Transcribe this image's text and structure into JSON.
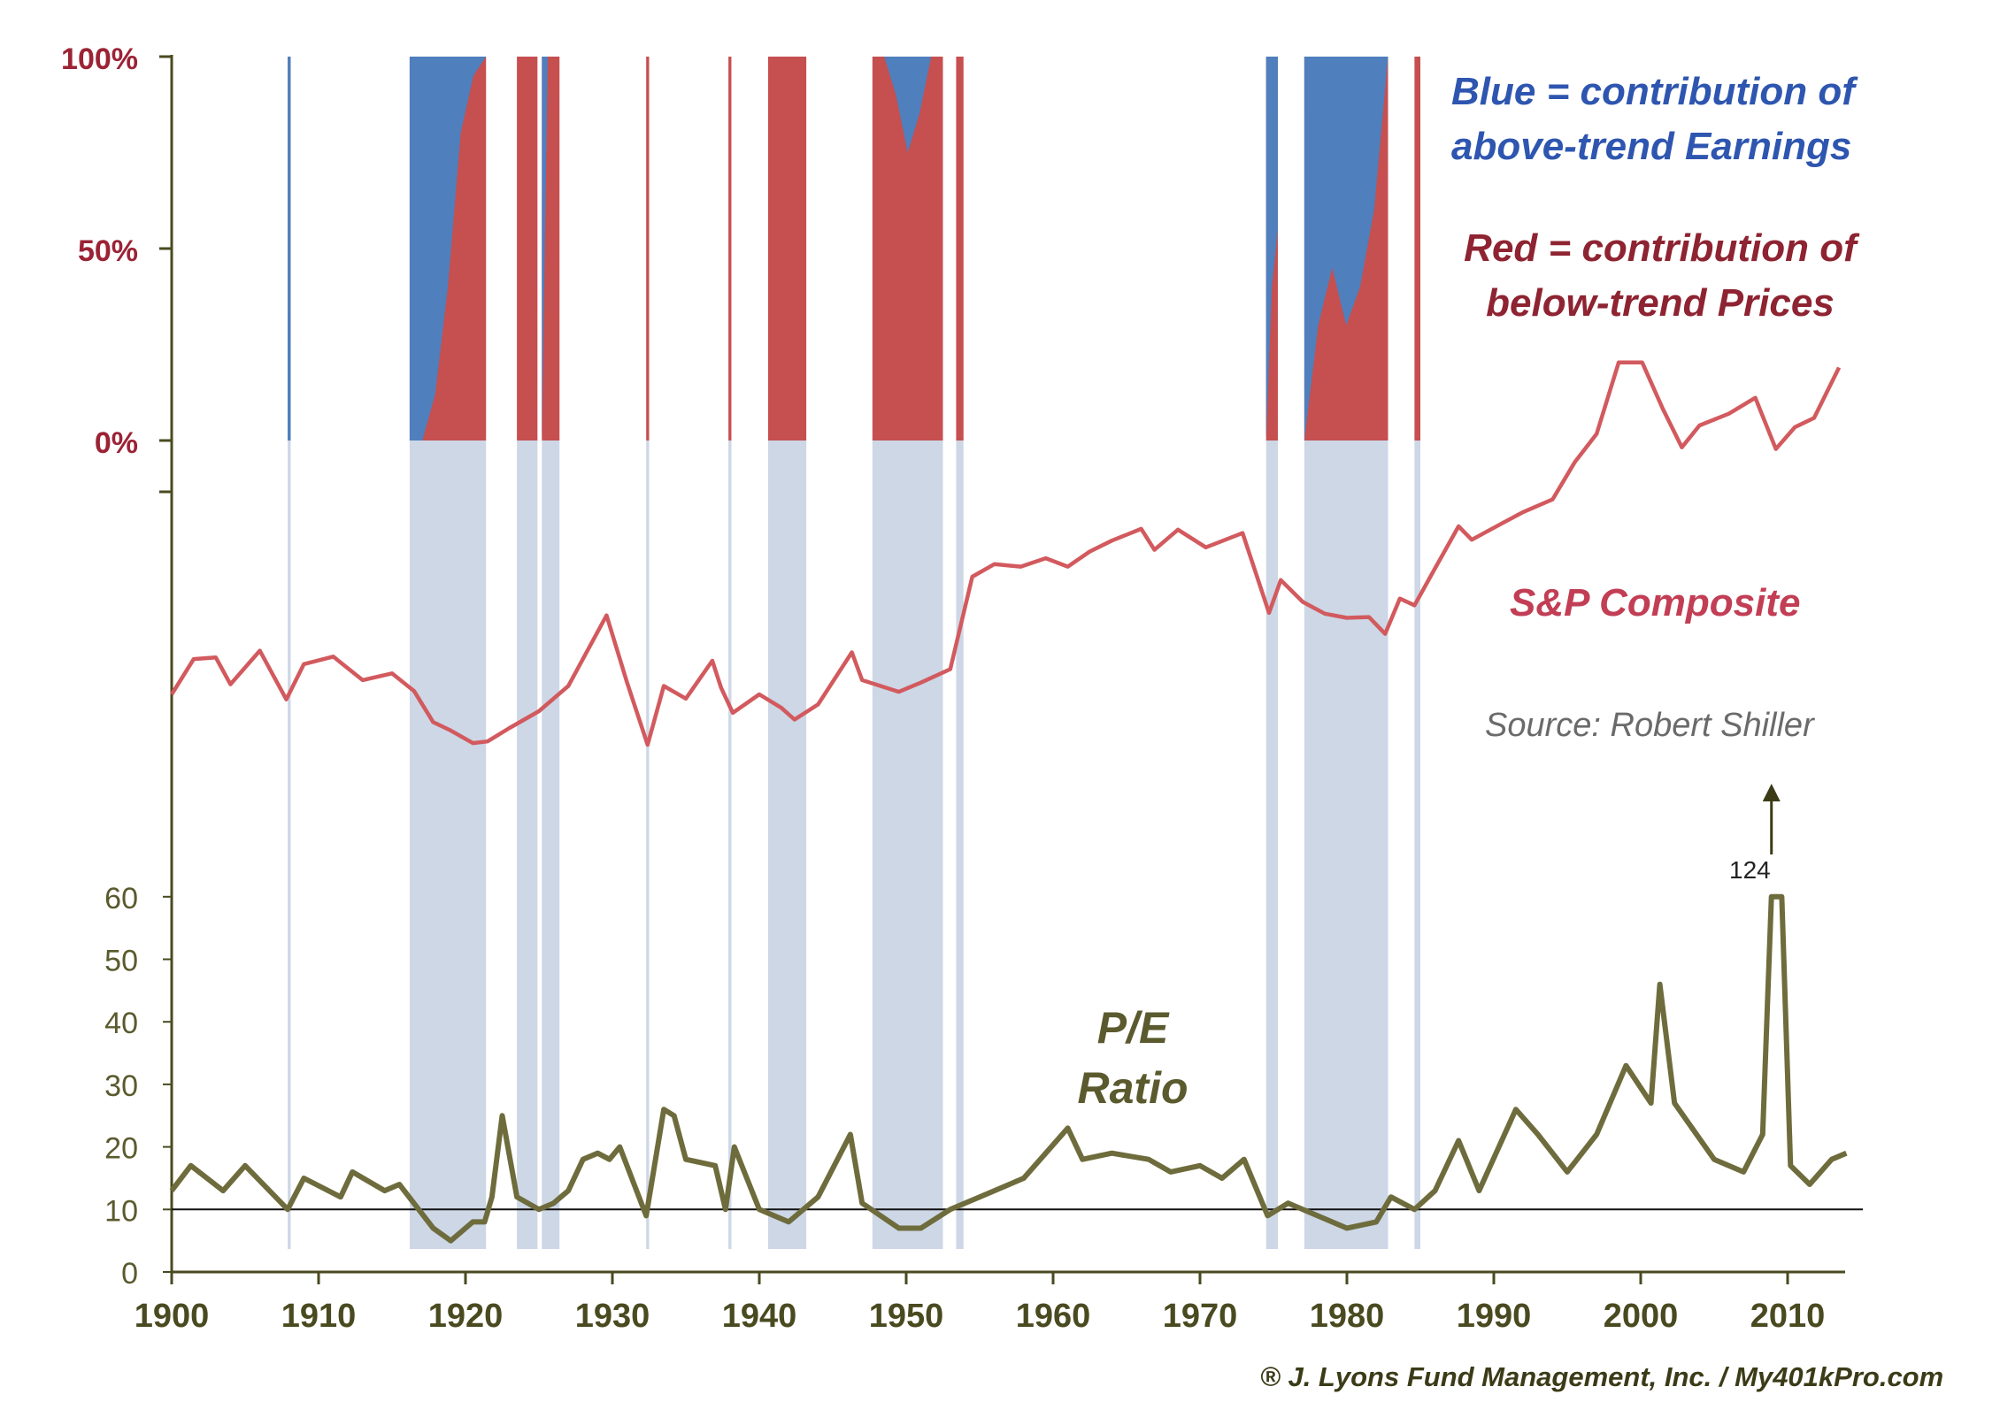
{
  "colors": {
    "blue_fill": "#4f7fbd",
    "red_fill": "#c64f50",
    "shade": "#cdd7e6",
    "sp_line": "#d25a5e",
    "pe_line": "#6e6c3c",
    "pct_ticks": "#9b2335",
    "pe_ticks": "#5a5a2e",
    "year_ticks": "#4a4a20",
    "axis": "#4a4a20"
  },
  "annotations": {
    "blue_line1": "Blue = contribution of",
    "blue_line2": "above-trend Earnings",
    "red_line1": "Red = contribution of",
    "red_line2": "below-trend Prices",
    "sp_label": "S&P Composite",
    "source": "Source: Robert Shiller",
    "pe_line1": "P/E",
    "pe_line2": "Ratio",
    "off_scale_value": "124",
    "credit": "® J. Lyons Fund Management, Inc. / My401kPro.com"
  },
  "chart_data": [
    {
      "type": "area",
      "panel": "contribution",
      "y_tick_labels": [
        "100%",
        "50%",
        "0%"
      ],
      "ylim": [
        0,
        100
      ],
      "legend": "Blue = contribution of above-trend Earnings; Red = contribution of below-trend Prices",
      "periods": [
        {
          "start": 1907.9,
          "end": 1908.1,
          "blue_share": [
            100,
            100
          ]
        },
        {
          "start": 1916.2,
          "end": 1921.4,
          "blue_share": [
            100,
            100,
            88,
            60,
            20,
            5,
            0
          ]
        },
        {
          "start": 1923.5,
          "end": 1924.9,
          "blue_share": [
            0,
            0
          ]
        },
        {
          "start": 1925.2,
          "end": 1926.4,
          "blue_share": [
            100,
            0,
            0,
            0
          ]
        },
        {
          "start": 1932.3,
          "end": 1932.5,
          "blue_share": [
            0,
            0
          ]
        },
        {
          "start": 1937.9,
          "end": 1938.1,
          "blue_share": [
            0,
            0
          ]
        },
        {
          "start": 1940.6,
          "end": 1943.2,
          "blue_share": [
            0,
            0,
            0
          ]
        },
        {
          "start": 1947.7,
          "end": 1952.5,
          "blue_share": [
            0,
            0,
            10,
            25,
            15,
            0,
            0
          ]
        },
        {
          "start": 1953.4,
          "end": 1953.9,
          "blue_share": [
            0,
            0
          ]
        },
        {
          "start": 1974.5,
          "end": 1975.3,
          "blue_share": [
            100,
            60,
            45
          ]
        },
        {
          "start": 1977.1,
          "end": 1982.8,
          "blue_share": [
            100,
            70,
            55,
            70,
            60,
            40,
            0
          ]
        },
        {
          "start": 1984.6,
          "end": 1985.0,
          "blue_share": [
            0,
            0
          ]
        }
      ]
    },
    {
      "type": "line",
      "panel": "price",
      "series": [
        {
          "name": "S&P Composite",
          "x": [
            1900,
            1901.5,
            1903,
            1904,
            1906,
            1907.8,
            1909,
            1911,
            1913,
            1915,
            1916.5,
            1917.8,
            1919,
            1920.5,
            1921.5,
            1923,
            1925,
            1927,
            1929.6,
            1931,
            1932.4,
            1933.5,
            1935,
            1936.8,
            1937.4,
            1938.2,
            1940,
            1941.5,
            1942.4,
            1944,
            1946.3,
            1947,
            1949.5,
            1951,
            1953,
            1954.5,
            1956,
            1957.8,
            1959.5,
            1961,
            1962.5,
            1964,
            1966,
            1966.9,
            1968.5,
            1970.4,
            1972.9,
            1974.7,
            1975.5,
            1977,
            1978.5,
            1980,
            1981.5,
            1982.6,
            1983.6,
            1984.6,
            1986,
            1987.6,
            1988.5,
            1990.5,
            1992,
            1994,
            1995.5,
            1997,
            1998.5,
            2000.1,
            2001.5,
            2002.8,
            2004,
            2006,
            2007.8,
            2009.2,
            2010.5,
            2011.8,
            2013.5
          ],
          "values": [
            100,
            142,
            144,
            112,
            152,
            94,
            136,
            145,
            117,
            125,
            104,
            67,
            57,
            42,
            44,
            60,
            80,
            110,
            194,
            114,
            40,
            110,
            95,
            140,
            108,
            78,
            100,
            84,
            70,
            88,
            150,
            117,
            103,
            114,
            130,
            240,
            255,
            252,
            262,
            252,
            270,
            283,
            297,
            272,
            296,
            275,
            292,
            197,
            236,
            210,
            196,
            191,
            192,
            172,
            214,
            206,
            250,
            300,
            284,
            303,
            317,
            332,
            376,
            410,
            495,
            495,
            440,
            394,
            420,
            434,
            453,
            392,
            418,
            429,
            489
          ]
        }
      ]
    },
    {
      "type": "line",
      "panel": "pe_ratio",
      "y_tick_labels": [
        "0",
        "10",
        "20",
        "30",
        "40",
        "50",
        "60"
      ],
      "ylim": [
        0,
        60
      ],
      "x_tick_labels": [
        "1900",
        "1910",
        "1920",
        "1930",
        "1940",
        "1950",
        "1960",
        "1970",
        "1980",
        "1990",
        "2000",
        "2010"
      ],
      "xlim": [
        1900,
        2014
      ],
      "reference_line": 10,
      "off_scale_peak": 124,
      "series": [
        {
          "name": "P/E Ratio",
          "x": [
            1900,
            1901.3,
            1903.5,
            1905,
            1907.9,
            1909,
            1911.5,
            1912.3,
            1914.5,
            1915.5,
            1917.8,
            1919,
            1920.5,
            1921.3,
            1921.8,
            1922.5,
            1923.5,
            1925,
            1926,
            1927,
            1928,
            1929,
            1929.8,
            1930.5,
            1932.3,
            1933.5,
            1934.2,
            1935,
            1937,
            1937.7,
            1938.3,
            1940,
            1942,
            1944,
            1946.2,
            1947,
            1949.5,
            1951,
            1953,
            1955,
            1958,
            1961,
            1962,
            1964,
            1966.5,
            1968,
            1970,
            1971.5,
            1973,
            1974.6,
            1976,
            1978,
            1980,
            1982,
            1983,
            1984.6,
            1986,
            1987.6,
            1989,
            1991.5,
            1993,
            1995,
            1997,
            1999,
            2000.7,
            2001.3,
            2002.3,
            2003.5,
            2005,
            2007,
            2008.3,
            2008.9,
            2009.6,
            2010.2,
            2011.5,
            2013,
            2014
          ],
          "values": [
            13,
            17,
            13,
            17,
            10,
            15,
            12,
            16,
            13,
            14,
            7,
            5,
            8,
            8,
            12,
            25,
            12,
            10,
            11,
            13,
            18,
            19,
            18,
            20,
            9,
            26,
            25,
            18,
            17,
            10,
            20,
            10,
            8,
            12,
            22,
            11,
            7,
            7,
            10,
            12,
            15,
            23,
            18,
            19,
            18,
            16,
            17,
            15,
            18,
            9,
            11,
            9,
            7,
            8,
            12,
            10,
            13,
            21,
            13,
            26,
            22,
            16,
            22,
            33,
            27,
            46,
            27,
            23,
            18,
            16,
            22,
            60,
            60,
            17,
            14,
            18,
            19
          ]
        }
      ]
    }
  ]
}
